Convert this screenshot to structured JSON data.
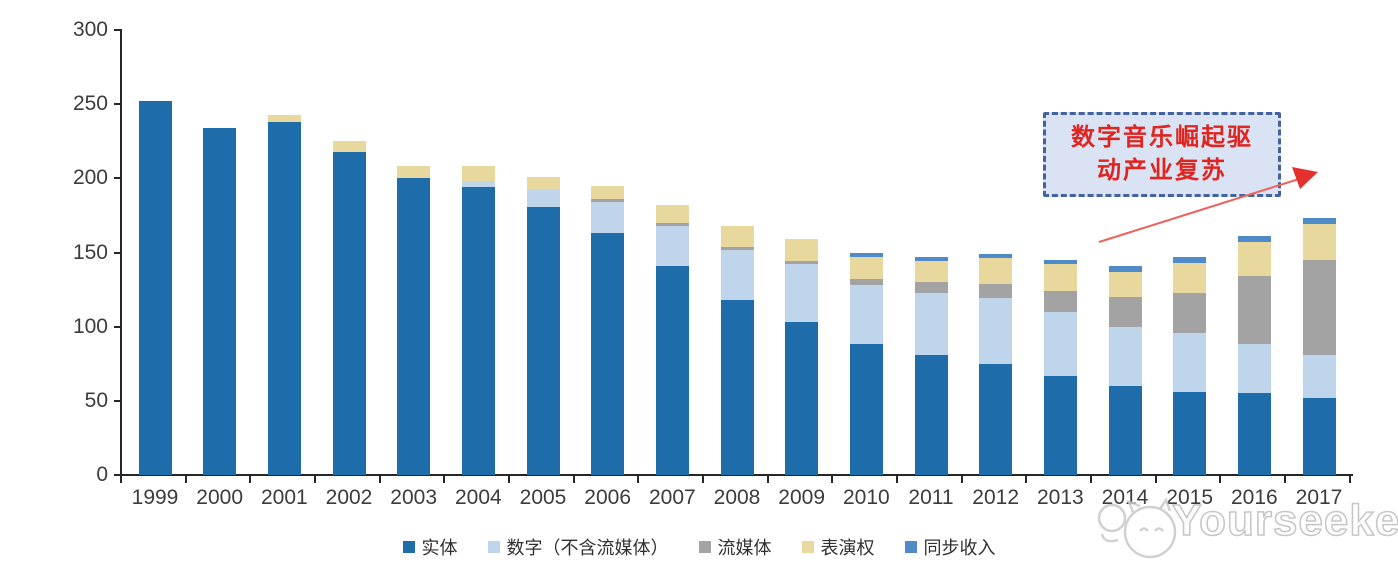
{
  "chart_data": {
    "type": "bar",
    "stacked": true,
    "title": "",
    "xlabel": "",
    "ylabel": "",
    "ylim": [
      0,
      300
    ],
    "yticks": [
      0,
      50,
      100,
      150,
      200,
      250,
      300
    ],
    "grid": false,
    "legend_position": "bottom",
    "categories": [
      "1999",
      "2000",
      "2001",
      "2002",
      "2003",
      "2004",
      "2005",
      "2006",
      "2007",
      "2008",
      "2009",
      "2010",
      "2011",
      "2012",
      "2013",
      "2014",
      "2015",
      "2016",
      "2017"
    ],
    "series": [
      {
        "name": "实体",
        "color": "#1f6cab",
        "values": [
          252,
          234,
          238,
          218,
          200,
          194,
          181,
          163,
          141,
          118,
          103,
          88,
          81,
          75,
          67,
          60,
          56,
          55,
          52
        ]
      },
      {
        "name": "数字（不含流媒体）",
        "color": "#bfd5ec",
        "values": [
          0,
          0,
          0,
          0,
          0,
          4,
          12,
          21,
          27,
          34,
          39,
          40,
          42,
          44,
          43,
          40,
          40,
          33,
          29
        ]
      },
      {
        "name": "流媒体",
        "color": "#a3a3a3",
        "values": [
          0,
          0,
          0,
          0,
          0,
          0,
          0,
          2,
          2,
          2,
          2,
          4,
          7,
          10,
          14,
          20,
          27,
          46,
          64
        ]
      },
      {
        "name": "表演权",
        "color": "#e9d89e",
        "values": [
          0,
          0,
          5,
          7,
          8,
          10,
          8,
          9,
          12,
          14,
          15,
          15,
          14,
          17,
          18,
          17,
          20,
          23,
          24
        ]
      },
      {
        "name": "同步收入",
        "color": "#4e8bc8",
        "values": [
          0,
          0,
          0,
          0,
          0,
          0,
          0,
          0,
          0,
          0,
          0,
          3,
          3,
          3,
          3,
          4,
          4,
          4,
          4
        ]
      }
    ]
  },
  "annotation": {
    "line1": "数字音乐崛起驱",
    "line2": "动产业复苏",
    "text_color": "#e02420",
    "box_fill": "#d9e3f3",
    "border_color": "#44639e",
    "arrow_color": "#ef4e48"
  },
  "watermark": {
    "text": "Yourseeker"
  }
}
